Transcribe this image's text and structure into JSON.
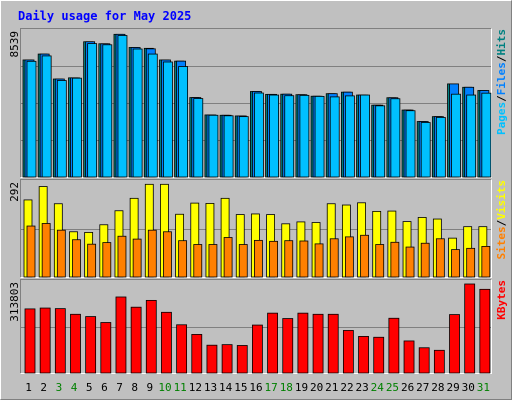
{
  "title": "Daily usage for May 2025",
  "colors": {
    "background": "#c0c0c0",
    "frame_light": "#ffffff",
    "frame_dark": "#808080",
    "title": "#0000ff",
    "grid": "#808080",
    "hits": "#008080",
    "files": "#0080ff",
    "pages": "#00c0ff",
    "visits": "#ffff00",
    "sites": "#ff8000",
    "kbytes": "#ff0000",
    "day_weekday": "#000000",
    "day_weekend": "#008000"
  },
  "chart_data": {
    "type": "bar",
    "title": "Daily usage for May 2025",
    "categories": [
      "1",
      "2",
      "3",
      "4",
      "5",
      "6",
      "7",
      "8",
      "9",
      "10",
      "11",
      "12",
      "13",
      "14",
      "15",
      "16",
      "17",
      "18",
      "19",
      "20",
      "21",
      "22",
      "23",
      "24",
      "25",
      "26",
      "27",
      "28",
      "29",
      "30",
      "31"
    ],
    "weekend_days": [
      "3",
      "4",
      "10",
      "11",
      "17",
      "18",
      "24",
      "25",
      "31"
    ],
    "panels": [
      {
        "id": "hits-files-pages",
        "max_label": "8539",
        "max": 8539,
        "ylabel_parts": [
          "Pages",
          "Files",
          "Hits"
        ],
        "ylabel_colors": [
          "pages",
          "files",
          "hits"
        ],
        "series": [
          {
            "name": "Hits",
            "color": "hits",
            "values": [
              6940,
              7290,
              5810,
              5880,
              8020,
              7900,
              8460,
              7680,
              7630,
              6940,
              6870,
              4710,
              3680,
              3660,
              3620,
              5070,
              4900,
              4910,
              4880,
              4790,
              4940,
              5030,
              4860,
              4260,
              4700,
              3970,
              3290,
              3580,
              5520,
              5320,
              5130
            ]
          },
          {
            "name": "Files",
            "color": "files",
            "values": [
              6940,
              7290,
              5810,
              5880,
              8020,
              7900,
              8460,
              7680,
              7600,
              6940,
              6870,
              4710,
              3680,
              3660,
              3620,
              5070,
              4900,
              4910,
              4880,
              4790,
              4940,
              5030,
              4860,
              4260,
              4700,
              3970,
              3290,
              3580,
              5520,
              5320,
              5130
            ]
          },
          {
            "name": "Pages",
            "color": "pages",
            "values": [
              6860,
              7180,
              5720,
              5860,
              7910,
              7840,
              8390,
              7590,
              7290,
              6820,
              6550,
              4650,
              3660,
              3630,
              3580,
              4980,
              4860,
              4820,
              4840,
              4780,
              4750,
              4810,
              4860,
              4220,
              4640,
              3930,
              3230,
              3530,
              4910,
              4860,
              4970
            ]
          }
        ]
      },
      {
        "id": "visits-sites",
        "max_label": "292",
        "max": 292,
        "ylabel_parts": [
          "Sites",
          "Visits"
        ],
        "ylabel_colors": [
          "sites",
          "visits"
        ],
        "series": [
          {
            "name": "Visits",
            "color": "visits",
            "values": [
              242,
              284,
              230,
              142,
              140,
              164,
              208,
              247,
              291,
              291,
              197,
              232,
              231,
              247,
              196,
              198,
              196,
              167,
              173,
              171,
              230,
              226,
              233,
              206,
              207,
              174,
              187,
              182,
              122,
              158,
              158
            ]
          },
          {
            "name": "Sites",
            "color": "sites",
            "values": [
              160,
              168,
              147,
              117,
              103,
              108,
              128,
              119,
              147,
              142,
              114,
              102,
              102,
              124,
              102,
              115,
              112,
              114,
              113,
              104,
              120,
              126,
              131,
              102,
              109,
              94,
              106,
              120,
              86,
              90,
              96
            ]
          }
        ]
      },
      {
        "id": "kbytes",
        "max_label": "313803",
        "max": 313803,
        "ylabel_parts": [
          "KBytes"
        ],
        "ylabel_colors": [
          "kbytes"
        ],
        "series": [
          {
            "name": "KBytes",
            "color": "kbytes",
            "values": [
              226000,
              229000,
              227000,
              207000,
              199000,
              178000,
              268000,
              232000,
              256000,
              214000,
              170000,
              136000,
              98000,
              100000,
              97000,
              169000,
              211000,
              192000,
              211000,
              207000,
              207000,
              150000,
              129000,
              126000,
              193000,
              113000,
              89000,
              80000,
              206000,
              313803,
              295000
            ]
          }
        ]
      }
    ]
  }
}
